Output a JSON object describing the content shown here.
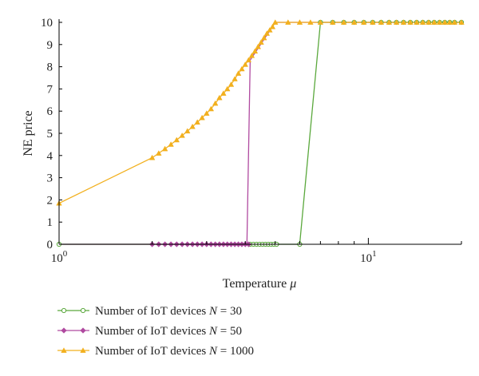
{
  "chart_data": {
    "type": "line",
    "xlabel": "Temperature",
    "xlabel_symbol": "μ",
    "ylabel": "NE price",
    "x_scale": "log",
    "xlim": [
      1,
      20
    ],
    "ylim": [
      0,
      10
    ],
    "x_ticks": [
      {
        "value": 1,
        "base": "10",
        "exp": "0"
      },
      {
        "value": 10,
        "base": "10",
        "exp": "1"
      }
    ],
    "y_ticks": [
      0,
      1,
      2,
      3,
      4,
      5,
      6,
      7,
      8,
      9,
      10
    ],
    "grid": false,
    "legend_position": "bottom",
    "series": [
      {
        "name_prefix": "Number of IoT devices ",
        "name_var": "N",
        "name_value": " = 30",
        "color": "#5aa83c",
        "marker": "circle",
        "line_points": [
          [
            1,
            0
          ],
          [
            6,
            0
          ],
          [
            7,
            10
          ],
          [
            20,
            10
          ]
        ],
        "marker_x": [
          1,
          4.15,
          4.25,
          4.35,
          4.45,
          4.55,
          4.65,
          4.75,
          4.85,
          4.95,
          5.05,
          6,
          7,
          7.67,
          8.33,
          9,
          9.67,
          10.33,
          11,
          11.67,
          12.33,
          13,
          13.67,
          14.33,
          15,
          15.67,
          16.33,
          17,
          17.67,
          18.33,
          19,
          20
        ],
        "marker_y_rule": "0 if x<=6 else 10"
      },
      {
        "name_prefix": "Number of IoT devices ",
        "name_var": "N",
        "name_value": " = 50",
        "color": "#b04aa0",
        "marker": "diamond",
        "line_points": [
          [
            1,
            0
          ],
          [
            4.05,
            0
          ],
          [
            4.15,
            8.3
          ],
          [
            5,
            10
          ],
          [
            20,
            10
          ]
        ],
        "marker_x": [
          2,
          2.1,
          2.2,
          2.3,
          2.4,
          2.5,
          2.6,
          2.7,
          2.8,
          2.9,
          3,
          3.1,
          3.2,
          3.3,
          3.4,
          3.5,
          3.6,
          3.7,
          3.8,
          3.9,
          4,
          4.1
        ],
        "marker_y_rule": "0"
      },
      {
        "name_prefix": "Number of IoT devices ",
        "name_var": "N",
        "name_value": " = 1000",
        "color": "#f2b01e",
        "marker": "triangle",
        "line_points": [
          [
            1,
            1.85
          ],
          [
            2,
            3.9
          ],
          [
            2.1,
            4.1
          ],
          [
            2.2,
            4.3
          ],
          [
            2.3,
            4.5
          ],
          [
            2.4,
            4.7
          ],
          [
            2.5,
            4.9
          ],
          [
            2.6,
            5.1
          ],
          [
            2.7,
            5.3
          ],
          [
            2.8,
            5.5
          ],
          [
            2.9,
            5.7
          ],
          [
            3.0,
            5.9
          ],
          [
            3.1,
            6.1
          ],
          [
            3.2,
            6.35
          ],
          [
            3.3,
            6.6
          ],
          [
            3.4,
            6.8
          ],
          [
            3.5,
            7.0
          ],
          [
            3.6,
            7.2
          ],
          [
            3.7,
            7.45
          ],
          [
            3.8,
            7.7
          ],
          [
            3.9,
            7.9
          ],
          [
            4.0,
            8.1
          ],
          [
            4.1,
            8.3
          ],
          [
            4.2,
            8.5
          ],
          [
            4.3,
            8.7
          ],
          [
            4.4,
            8.9
          ],
          [
            4.5,
            9.1
          ],
          [
            4.6,
            9.3
          ],
          [
            4.7,
            9.5
          ],
          [
            4.8,
            9.65
          ],
          [
            4.9,
            9.8
          ],
          [
            5.0,
            10
          ],
          [
            5.5,
            10
          ],
          [
            6,
            10
          ],
          [
            6.5,
            10
          ],
          [
            7,
            10
          ],
          [
            7.67,
            10
          ],
          [
            8.33,
            10
          ],
          [
            9,
            10
          ],
          [
            9.67,
            10
          ],
          [
            10.33,
            10
          ],
          [
            11,
            10
          ],
          [
            11.67,
            10
          ],
          [
            12.33,
            10
          ],
          [
            13,
            10
          ],
          [
            13.67,
            10
          ],
          [
            14.33,
            10
          ],
          [
            15,
            10
          ],
          [
            15.67,
            10
          ],
          [
            16.33,
            10
          ],
          [
            17,
            10
          ],
          [
            17.67,
            10
          ],
          [
            18.33,
            10
          ],
          [
            19,
            10
          ],
          [
            20,
            10
          ]
        ]
      }
    ]
  }
}
